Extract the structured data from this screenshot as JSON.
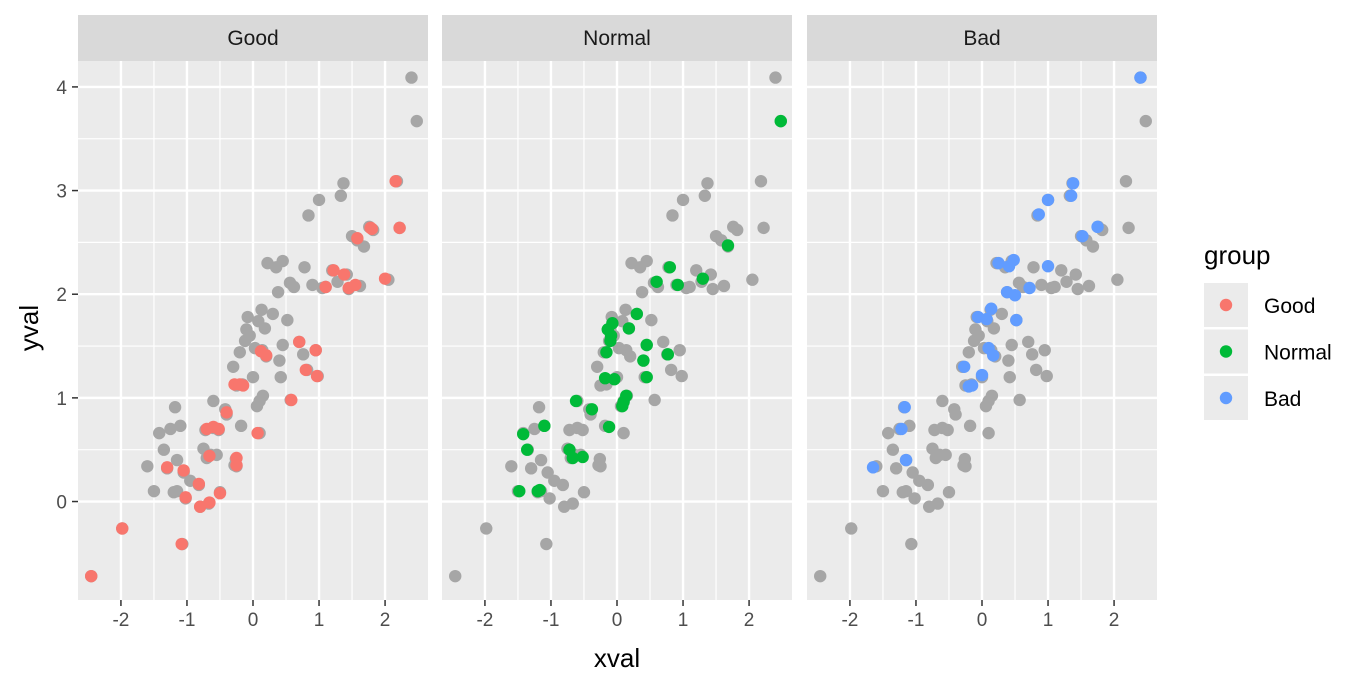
{
  "colors": {
    "panel_bg": "#EBEBEB",
    "grid": "#FFFFFF",
    "strip_bg": "#D9D9D9",
    "background_points": "#A6A6A6",
    "tick": "#333333"
  },
  "chart_data": {
    "type": "scatter",
    "facet_by": "group",
    "panels": [
      "Good",
      "Normal",
      "Bad"
    ],
    "xlabel": "xval",
    "ylabel": "yval",
    "xlim": [
      -2.65,
      2.65
    ],
    "ylim": [
      -0.95,
      4.25
    ],
    "xticks": [
      -2,
      -1,
      0,
      1,
      2
    ],
    "xtick_labels": [
      "-2",
      "-1",
      "0",
      "1",
      "2"
    ],
    "yticks": [
      0,
      1,
      2,
      3,
      4
    ],
    "ytick_labels": [
      "0",
      "1",
      "2",
      "3",
      "4"
    ],
    "grid": true,
    "legend": {
      "title": "group",
      "position": "right",
      "entries": [
        {
          "label": "Good",
          "color": "#F8766D"
        },
        {
          "label": "Normal",
          "color": "#00BA38"
        },
        {
          "label": "Bad",
          "color": "#619CFF"
        }
      ]
    },
    "series": [
      {
        "name": "Good",
        "color": "#F8766D",
        "points": [
          [
            -2.45,
            -0.72
          ],
          [
            -1.98,
            -0.26
          ],
          [
            -1.3,
            0.33
          ],
          [
            -1.08,
            -0.41
          ],
          [
            -1.05,
            0.3
          ],
          [
            -1.02,
            0.04
          ],
          [
            -0.82,
            0.17
          ],
          [
            -0.8,
            -0.05
          ],
          [
            -0.7,
            0.7
          ],
          [
            -0.66,
            -0.01
          ],
          [
            -0.66,
            0.44
          ],
          [
            -0.6,
            0.72
          ],
          [
            -0.52,
            0.7
          ],
          [
            -0.5,
            0.08
          ],
          [
            -0.4,
            0.86
          ],
          [
            -0.28,
            1.13
          ],
          [
            -0.25,
            0.42
          ],
          [
            -0.25,
            0.35
          ],
          [
            -0.2,
            1.13
          ],
          [
            -0.15,
            1.12
          ],
          [
            0.07,
            0.66
          ],
          [
            0.12,
            1.45
          ],
          [
            0.2,
            1.41
          ],
          [
            0.58,
            0.98
          ],
          [
            0.7,
            1.54
          ],
          [
            0.8,
            1.27
          ],
          [
            0.95,
            1.46
          ],
          [
            0.97,
            1.21
          ],
          [
            1.1,
            2.07
          ],
          [
            1.22,
            2.23
          ],
          [
            1.38,
            2.19
          ],
          [
            1.45,
            2.06
          ],
          [
            1.55,
            2.09
          ],
          [
            1.58,
            2.54
          ],
          [
            1.78,
            2.64
          ],
          [
            1.8,
            2.63
          ],
          [
            2.0,
            2.15
          ],
          [
            2.16,
            3.09
          ],
          [
            2.22,
            2.64
          ]
        ]
      },
      {
        "name": "Normal",
        "color": "#00BA38",
        "points": [
          [
            -1.48,
            0.1
          ],
          [
            -1.42,
            0.65
          ],
          [
            -1.36,
            0.5
          ],
          [
            -1.2,
            0.1
          ],
          [
            -1.17,
            0.11
          ],
          [
            -1.1,
            0.73
          ],
          [
            -0.72,
            0.5
          ],
          [
            -0.67,
            0.42
          ],
          [
            -0.62,
            0.97
          ],
          [
            -0.52,
            0.43
          ],
          [
            -0.38,
            0.89
          ],
          [
            -0.18,
            1.19
          ],
          [
            -0.16,
            1.44
          ],
          [
            -0.14,
            1.66
          ],
          [
            -0.12,
            0.72
          ],
          [
            -0.1,
            1.55
          ],
          [
            -0.09,
            1.6
          ],
          [
            -0.07,
            1.72
          ],
          [
            -0.04,
            1.18
          ],
          [
            0.08,
            0.92
          ],
          [
            0.1,
            0.96
          ],
          [
            0.14,
            1.02
          ],
          [
            0.18,
            1.67
          ],
          [
            0.3,
            1.81
          ],
          [
            0.4,
            1.36
          ],
          [
            0.45,
            1.51
          ],
          [
            0.45,
            1.2
          ],
          [
            0.6,
            2.12
          ],
          [
            0.77,
            1.42
          ],
          [
            0.8,
            2.26
          ],
          [
            0.92,
            2.09
          ],
          [
            1.3,
            2.15
          ],
          [
            1.68,
            2.47
          ],
          [
            2.48,
            3.67
          ]
        ]
      },
      {
        "name": "Bad",
        "color": "#619CFF",
        "points": [
          [
            -1.65,
            0.33
          ],
          [
            -1.22,
            0.7
          ],
          [
            -1.17,
            0.91
          ],
          [
            -1.15,
            0.4
          ],
          [
            -0.27,
            1.3
          ],
          [
            -0.2,
            1.11
          ],
          [
            -0.15,
            1.12
          ],
          [
            -0.06,
            1.78
          ],
          [
            0.0,
            1.22
          ],
          [
            0.07,
            1.76
          ],
          [
            0.1,
            1.48
          ],
          [
            0.14,
            1.86
          ],
          [
            0.17,
            1.41
          ],
          [
            0.25,
            2.3
          ],
          [
            0.38,
            2.02
          ],
          [
            0.41,
            2.27
          ],
          [
            0.48,
            2.33
          ],
          [
            0.5,
            1.99
          ],
          [
            0.52,
            1.75
          ],
          [
            0.72,
            2.06
          ],
          [
            0.86,
            2.77
          ],
          [
            1.0,
            2.27
          ],
          [
            1.0,
            2.91
          ],
          [
            1.35,
            2.95
          ],
          [
            1.38,
            3.07
          ],
          [
            1.52,
            2.56
          ],
          [
            1.75,
            2.65
          ],
          [
            2.4,
            4.09
          ]
        ]
      },
      {
        "name": "Other",
        "color": "#A6A6A6",
        "points": [
          [
            -1.6,
            0.34
          ],
          [
            -1.5,
            0.1
          ],
          [
            -1.42,
            0.66
          ],
          [
            -1.35,
            0.5
          ],
          [
            -1.25,
            0.7
          ],
          [
            -1.2,
            0.09
          ],
          [
            -1.18,
            0.91
          ],
          [
            -1.15,
            0.1
          ],
          [
            -1.15,
            0.4
          ],
          [
            -1.1,
            0.73
          ],
          [
            -0.95,
            0.2
          ],
          [
            -0.75,
            0.51
          ],
          [
            -0.7,
            0.42
          ],
          [
            -0.6,
            0.97
          ],
          [
            -0.55,
            0.45
          ],
          [
            -0.42,
            0.89
          ],
          [
            -0.3,
            1.3
          ],
          [
            -0.28,
            0.35
          ],
          [
            -0.25,
            1.12
          ],
          [
            -0.2,
            1.44
          ],
          [
            -0.12,
            1.55
          ],
          [
            -0.1,
            1.66
          ],
          [
            -0.08,
            1.78
          ],
          [
            -0.05,
            1.6
          ],
          [
            0.0,
            1.2
          ],
          [
            0.03,
            1.48
          ],
          [
            0.06,
            0.92
          ],
          [
            0.08,
            1.74
          ],
          [
            0.1,
            0.97
          ],
          [
            0.13,
            1.85
          ],
          [
            0.15,
            1.02
          ],
          [
            0.18,
            1.67
          ],
          [
            0.22,
            2.3
          ],
          [
            0.3,
            1.81
          ],
          [
            0.35,
            2.26
          ],
          [
            0.38,
            2.02
          ],
          [
            0.4,
            1.36
          ],
          [
            0.42,
            1.2
          ],
          [
            0.45,
            2.32
          ],
          [
            0.45,
            1.51
          ],
          [
            0.52,
            1.75
          ],
          [
            0.56,
            2.11
          ],
          [
            0.62,
            2.07
          ],
          [
            0.7,
            1.54
          ],
          [
            0.76,
            1.42
          ],
          [
            0.78,
            2.26
          ],
          [
            0.84,
            2.76
          ],
          [
            0.9,
            2.09
          ],
          [
            0.95,
            1.46
          ],
          [
            0.98,
            1.21
          ],
          [
            1.0,
            2.91
          ],
          [
            1.05,
            2.06
          ],
          [
            1.2,
            2.23
          ],
          [
            1.28,
            2.12
          ],
          [
            1.33,
            2.95
          ],
          [
            1.37,
            3.07
          ],
          [
            1.42,
            2.19
          ],
          [
            1.45,
            2.05
          ],
          [
            1.5,
            2.56
          ],
          [
            1.58,
            2.52
          ],
          [
            1.62,
            2.08
          ],
          [
            1.68,
            2.46
          ],
          [
            1.76,
            2.65
          ],
          [
            1.82,
            2.62
          ],
          [
            2.05,
            2.14
          ],
          [
            2.18,
            3.09
          ],
          [
            2.22,
            2.64
          ],
          [
            2.4,
            4.09
          ],
          [
            2.48,
            3.67
          ],
          [
            -2.45,
            -0.72
          ],
          [
            -1.98,
            -0.26
          ],
          [
            -1.3,
            0.32
          ],
          [
            -1.07,
            -0.41
          ],
          [
            -1.05,
            0.28
          ],
          [
            -1.02,
            0.03
          ],
          [
            -0.82,
            0.16
          ],
          [
            -0.8,
            -0.05
          ],
          [
            -0.72,
            0.69
          ],
          [
            -0.67,
            -0.02
          ],
          [
            -0.64,
            0.45
          ],
          [
            -0.6,
            0.71
          ],
          [
            -0.52,
            0.69
          ],
          [
            -0.5,
            0.09
          ],
          [
            -0.4,
            0.84
          ],
          [
            -0.26,
            0.41
          ],
          [
            -0.25,
            0.34
          ],
          [
            -0.18,
            0.73
          ],
          [
            -0.16,
            1.13
          ],
          [
            0.1,
            0.66
          ],
          [
            0.14,
            1.46
          ],
          [
            0.2,
            1.4
          ],
          [
            0.57,
            0.98
          ],
          [
            0.82,
            1.27
          ],
          [
            1.1,
            2.07
          ]
        ]
      }
    ]
  }
}
